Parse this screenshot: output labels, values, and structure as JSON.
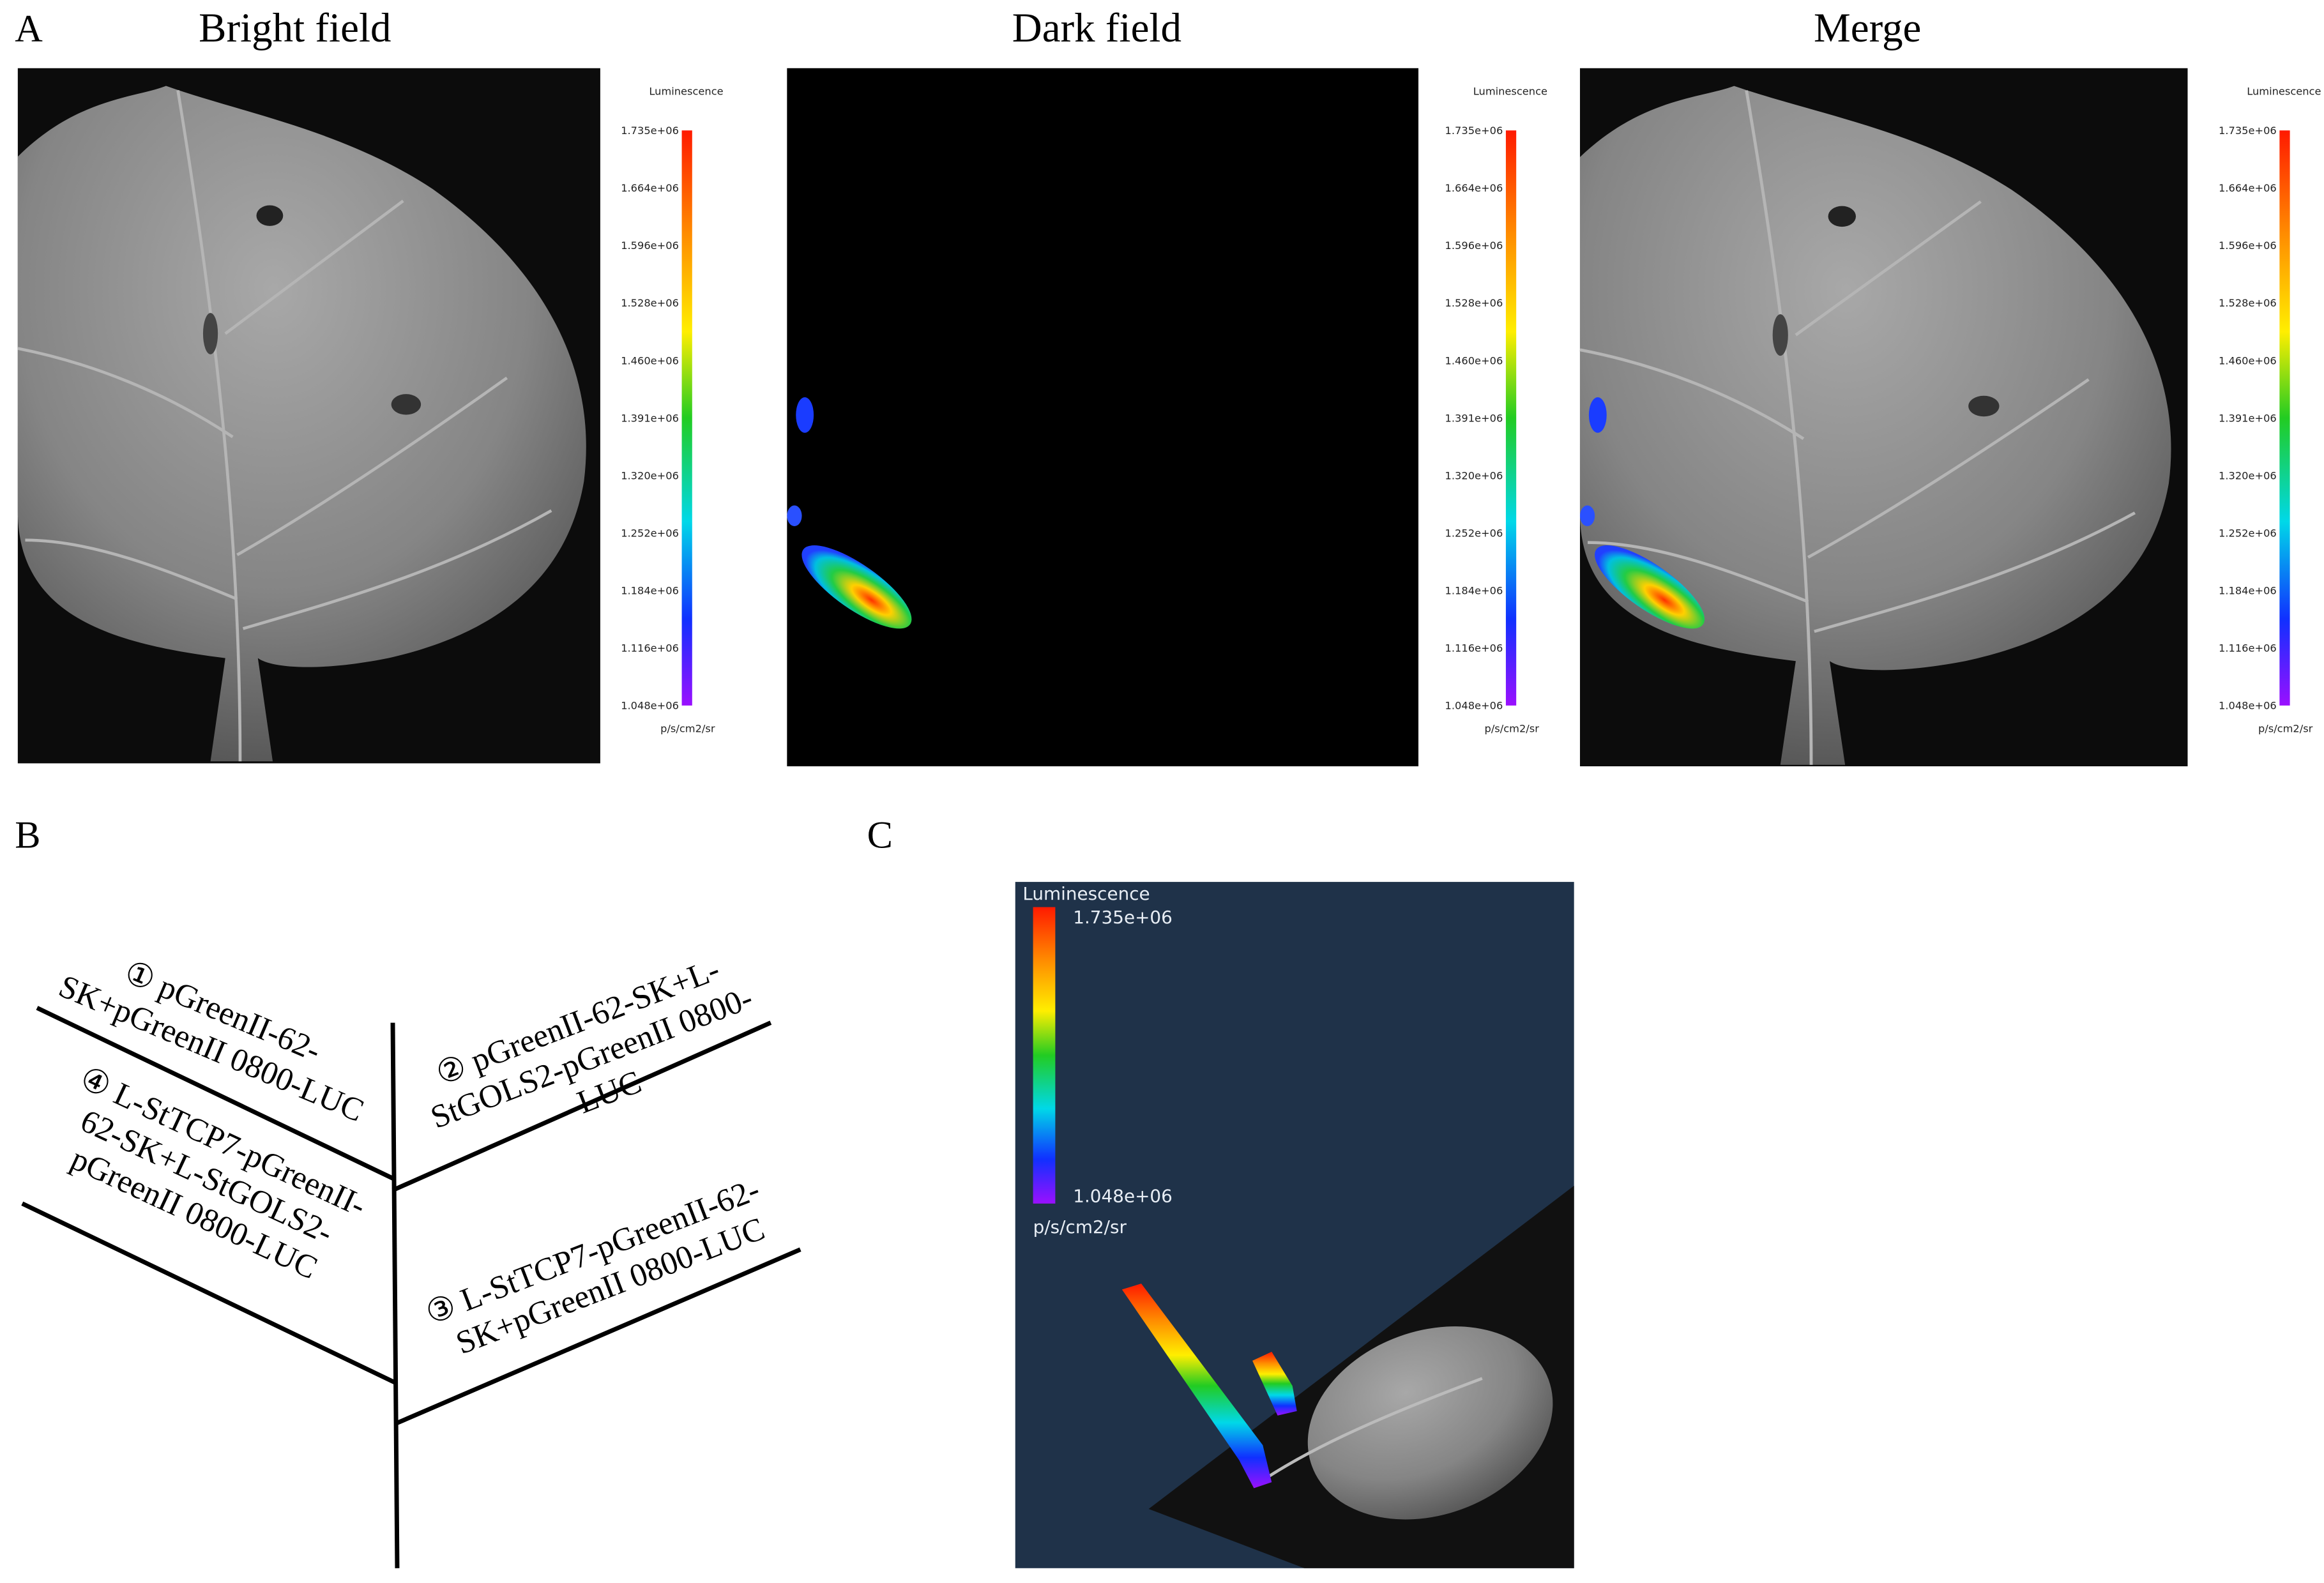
{
  "panel_a": {
    "label": "A",
    "images": [
      {
        "title": "Bright field"
      },
      {
        "title": "Dark field"
      },
      {
        "title": "Merge"
      }
    ],
    "colorbar": {
      "title": "Luminescence",
      "ticks": [
        "1.735e+06",
        "1.664e+06",
        "1.596e+06",
        "1.528e+06",
        "1.460e+06",
        "1.391e+06",
        "1.320e+06",
        "1.252e+06",
        "1.184e+06",
        "1.116e+06",
        "1.048e+06"
      ],
      "unit": "p/s/cm2/sr"
    }
  },
  "panel_b": {
    "label": "B",
    "regions": [
      {
        "lines": [
          "① pGreenII-62-",
          "SK+pGreenII 0800-LUC"
        ]
      },
      {
        "lines": [
          "② pGreenII-62-SK+L-",
          "StGOLS2-pGreenII 0800-",
          "LUC"
        ]
      },
      {
        "lines": [
          "③ L-StTCP7-pGreenII-62-",
          "SK+pGreenII 0800-LUC"
        ]
      },
      {
        "lines": [
          "④ L-StTCP7-pGreenII-",
          "62-SK+L-StGOLS2-",
          "pGreenII 0800-LUC"
        ]
      }
    ]
  },
  "panel_c": {
    "label": "C",
    "colorbar": {
      "title": "Luminescence",
      "max": "1.735e+06",
      "min": "1.048e+06",
      "unit": "p/s/cm2/sr"
    }
  }
}
